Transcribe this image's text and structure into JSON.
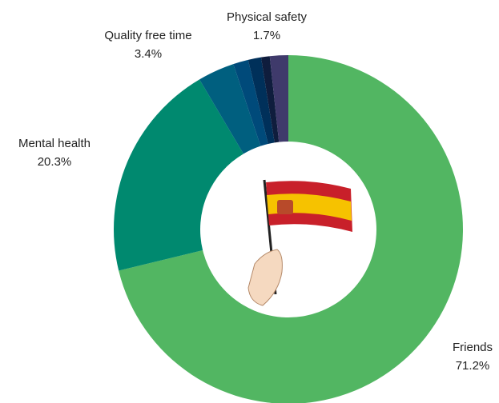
{
  "chart_data": {
    "type": "donut",
    "categories": [
      "Friends",
      "Mental health",
      "Quality free time",
      null,
      null,
      null,
      "Physical safety"
    ],
    "values": [
      71.2,
      20.3,
      3.4,
      1.4,
      1.2,
      0.8,
      1.7
    ],
    "value_labels": [
      "71.2%",
      "20.3%",
      "3.4%",
      null,
      null,
      null,
      "1.7%"
    ],
    "colors": [
      "#52b662",
      "#00896f",
      "#005f7f",
      "#004a7a",
      "#00305a",
      "#0f1d3d",
      "#3f3a6b"
    ]
  }
}
